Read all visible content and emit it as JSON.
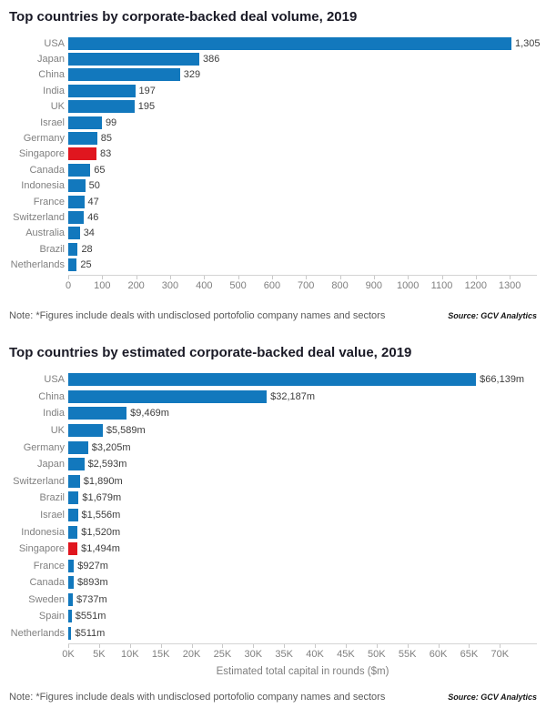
{
  "colors": {
    "bar_blue": "#1278bd",
    "bar_red": "#e0161f",
    "axis_line": "#d4d4d4"
  },
  "chart_data": [
    {
      "type": "bar",
      "orientation": "horizontal",
      "title": "Top countries by corporate-backed deal volume, 2019",
      "categories": [
        "USA",
        "Japan",
        "China",
        "India",
        "UK",
        "Israel",
        "Germany",
        "Singapore",
        "Canada",
        "Indonesia",
        "France",
        "Switzerland",
        "Australia",
        "Brazil",
        "Netherlands"
      ],
      "values": [
        1305,
        386,
        329,
        197,
        195,
        99,
        85,
        83,
        65,
        50,
        47,
        46,
        34,
        28,
        25
      ],
      "value_labels": [
        "1,305",
        "386",
        "329",
        "197",
        "195",
        "99",
        "85",
        "83",
        "65",
        "50",
        "47",
        "46",
        "34",
        "28",
        "25"
      ],
      "highlight_index": 7,
      "axis": {
        "tick_values": [
          0,
          100,
          200,
          300,
          400,
          500,
          600,
          700,
          800,
          900,
          1000,
          1100,
          1200,
          1300
        ],
        "tick_labels": [
          "0",
          "100",
          "200",
          "300",
          "400",
          "500",
          "600",
          "700",
          "800",
          "900",
          "1000",
          "1100",
          "1200",
          "1300"
        ],
        "full_scale": 1380
      },
      "xlabel": "",
      "grid": false,
      "legend": "none",
      "note": "Note: *Figures include deals with undisclosed portofolio company names and sectors",
      "source": "Source: GCV Analytics"
    },
    {
      "type": "bar",
      "orientation": "horizontal",
      "title": "Top countries by estimated corporate-backed deal value, 2019",
      "categories": [
        "USA",
        "China",
        "India",
        "UK",
        "Germany",
        "Japan",
        "Switzerland",
        "Brazil",
        "Israel",
        "Indonesia",
        "Singapore",
        "France",
        "Canada",
        "Sweden",
        "Spain",
        "Netherlands"
      ],
      "values": [
        66139,
        32187,
        9469,
        5589,
        3205,
        2593,
        1890,
        1679,
        1556,
        1520,
        1494,
        927,
        893,
        737,
        551,
        511
      ],
      "value_labels": [
        "$66,139m",
        "$32,187m",
        "$9,469m",
        "$5,589m",
        "$3,205m",
        "$2,593m",
        "$1,890m",
        "$1,679m",
        "$1,556m",
        "$1,520m",
        "$1,494m",
        "$927m",
        "$893m",
        "$737m",
        "$551m",
        "$511m"
      ],
      "highlight_index": 10,
      "axis": {
        "tick_values": [
          0,
          5000,
          10000,
          15000,
          20000,
          25000,
          30000,
          35000,
          40000,
          45000,
          50000,
          55000,
          60000,
          65000,
          70000
        ],
        "tick_labels": [
          "0K",
          "5K",
          "10K",
          "15K",
          "20K",
          "25K",
          "30K",
          "35K",
          "40K",
          "45K",
          "50K",
          "55K",
          "60K",
          "65K",
          "70K"
        ],
        "full_scale": 76000
      },
      "xlabel": "Estimated total capital in rounds ($m)",
      "grid": false,
      "legend": "none",
      "note": "Note: *Figures include deals with undisclosed portofolio company names and sectors",
      "source": "Source: GCV Analytics"
    }
  ]
}
